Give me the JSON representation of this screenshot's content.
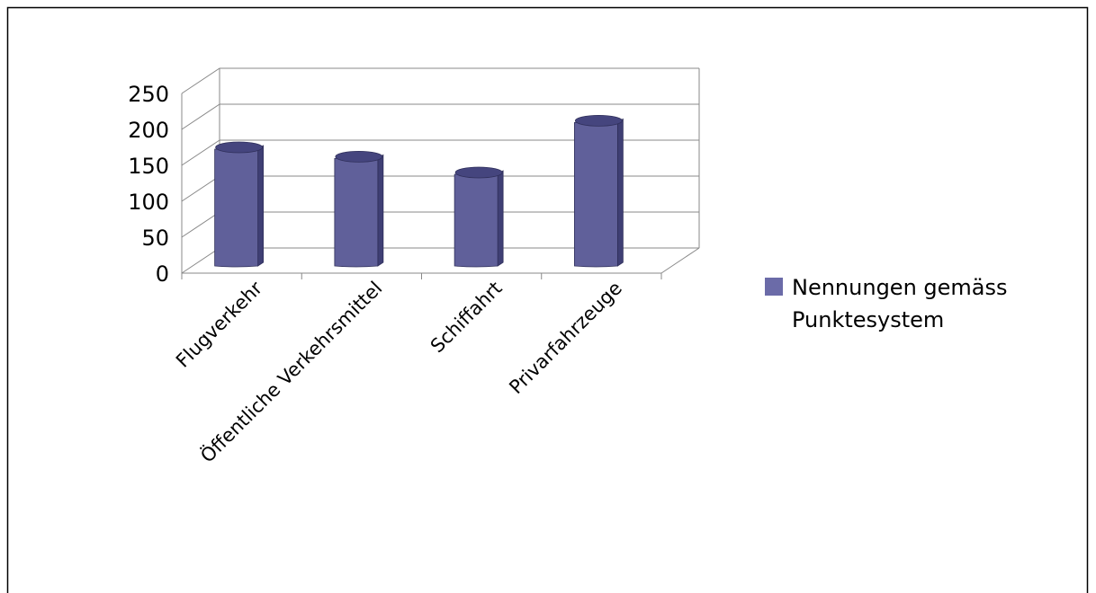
{
  "chart_data": {
    "type": "bar",
    "categories": [
      "Flugverkehr",
      "Öffentliche Verkehrsmittel",
      "Schiffahrt",
      "Privarfahrzeuge"
    ],
    "series": [
      {
        "name": "Nennungen gemäss Punktesystem",
        "values": [
          175,
          162,
          140,
          212
        ]
      }
    ],
    "yticks": [
      0,
      50,
      100,
      150,
      200,
      250
    ],
    "ylim": [
      0,
      250
    ],
    "grid": true,
    "legend": {
      "position": "right",
      "lines": [
        "Nennungen gemäss",
        "Punktesystem"
      ]
    },
    "colors": {
      "bar_front": "#60609a",
      "bar_side": "#3f3f74",
      "bar_top": "#45457e",
      "bar_outline": "#2f2f5a",
      "grid": "#888888",
      "legend_swatch": "#6b6ba8"
    }
  }
}
